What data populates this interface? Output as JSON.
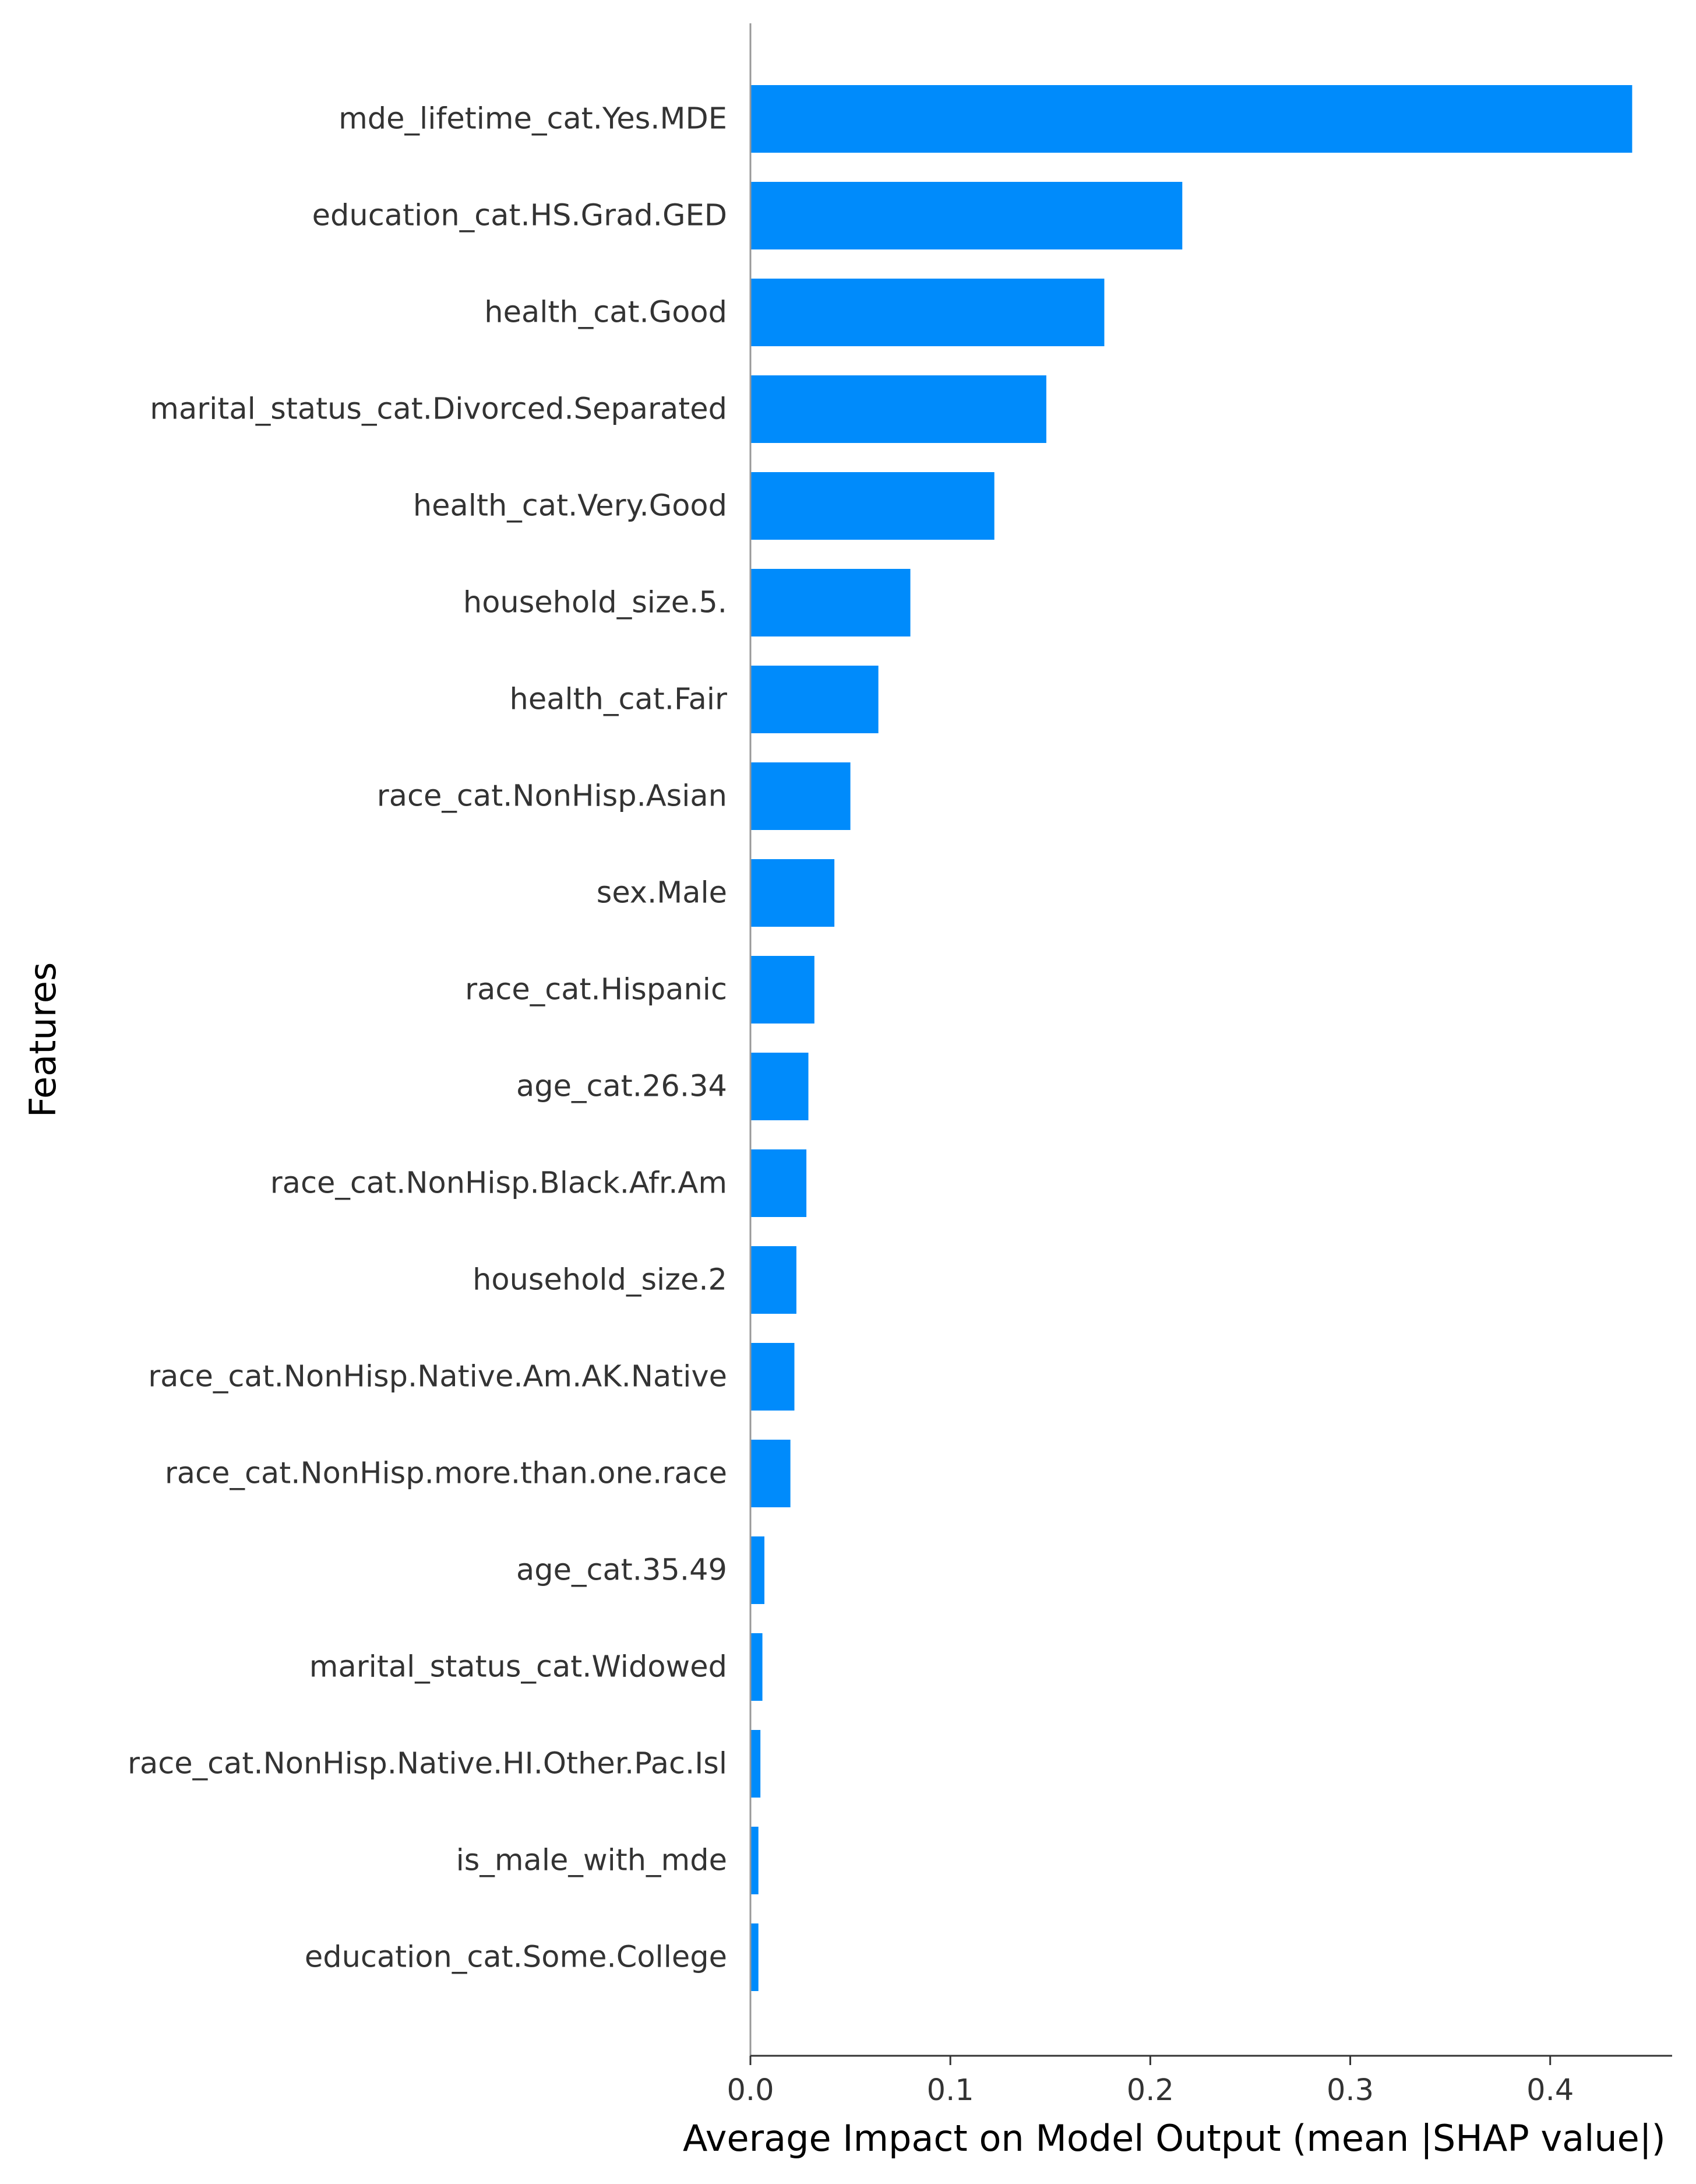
{
  "chart_data": {
    "type": "bar",
    "orientation": "horizontal",
    "categories": [
      "mde_lifetime_cat.Yes.MDE",
      "education_cat.HS.Grad.GED",
      "health_cat.Good",
      "marital_status_cat.Divorced.Separated",
      "health_cat.Very.Good",
      "household_size.5.",
      "health_cat.Fair",
      "race_cat.NonHisp.Asian",
      "sex.Male",
      "race_cat.Hispanic",
      "age_cat.26.34",
      "race_cat.NonHisp.Black.Afr.Am",
      "household_size.2",
      "race_cat.NonHisp.Native.Am.AK.Native",
      "race_cat.NonHisp.more.than.one.race",
      "age_cat.35.49",
      "marital_status_cat.Widowed",
      "race_cat.NonHisp.Native.HI.Other.Pac.Isl",
      "is_male_with_mde",
      "education_cat.Some.College"
    ],
    "values": [
      0.441,
      0.216,
      0.177,
      0.148,
      0.122,
      0.08,
      0.064,
      0.05,
      0.042,
      0.032,
      0.029,
      0.028,
      0.023,
      0.022,
      0.02,
      0.007,
      0.006,
      0.005,
      0.004,
      0.004
    ],
    "xlabel": "Average Impact on Model Output (mean |SHAP value|)",
    "ylabel": "Features",
    "xlim": [
      0,
      0.46
    ],
    "xticks": [
      0.0,
      0.1,
      0.2,
      0.3,
      0.4
    ],
    "xtick_labels": [
      "0.0",
      "0.1",
      "0.2",
      "0.3",
      "0.4"
    ],
    "bar_color": "#008bfb",
    "axis_color": "#333333",
    "grid": false
  }
}
